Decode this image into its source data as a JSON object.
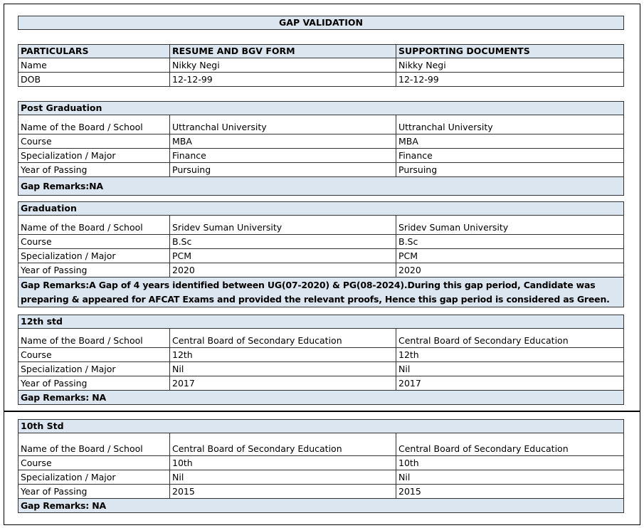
{
  "title": "GAP VALIDATION",
  "header": [
    "PARTICULARS",
    "RESUME AND BGV FORM",
    "SUPPORTING DOCUMENTS"
  ],
  "personal": [
    [
      "Name",
      "Nikky Negi",
      "Nikky Negi"
    ],
    [
      "DOB",
      "12-12-99",
      "12-12-99"
    ]
  ],
  "sections": [
    {
      "heading": "Post Graduation",
      "rows": [
        [
          "Name of the Board / School",
          "Uttranchal University",
          "Uttranchal University"
        ],
        [
          "Course",
          "MBA",
          "MBA"
        ],
        [
          "Specialization / Major",
          "Finance",
          "Finance"
        ],
        [
          "Year of Passing",
          "Pursuing",
          "Pursuing"
        ]
      ],
      "remarks": "Gap Remarks:NA"
    },
    {
      "heading": "Graduation",
      "rows": [
        [
          "Name of the Board / School",
          "Sridev Suman University",
          "Sridev Suman University"
        ],
        [
          "Course",
          "B.Sc",
          "B.Sc"
        ],
        [
          "Specialization / Major",
          "PCM",
          "PCM"
        ],
        [
          "Year of Passing",
          "2020",
          "2020"
        ]
      ],
      "remarks": "Gap Remarks:A Gap of 4 years identified between UG(07-2020) & PG(08-2024).During this gap period, Candidate was preparing & appeared for AFCAT Exams and provided the relevant proofs, Hence this gap period is considered as Green."
    },
    {
      "heading": "12th std",
      "rows": [
        [
          "Name of the Board / School",
          "Central Board of Secondary Education",
          "Central Board of Secondary Education"
        ],
        [
          "Course",
          "12th",
          "12th"
        ],
        [
          "Specialization / Major",
          "Nil",
          "Nil"
        ],
        [
          "Year of Passing",
          "2017",
          "2017"
        ]
      ],
      "remarks": "Gap Remarks: NA"
    },
    {
      "heading": "10th Std",
      "rows": [
        [
          "Name of the Board / School",
          "Central Board of Secondary Education",
          "Central Board of Secondary Education"
        ],
        [
          "Course",
          "10th",
          "10th"
        ],
        [
          "Specialization / Major",
          "Nil",
          "Nil"
        ],
        [
          "Year of Passing",
          "2015",
          "2015"
        ]
      ],
      "remarks": "Gap Remarks: NA"
    }
  ]
}
